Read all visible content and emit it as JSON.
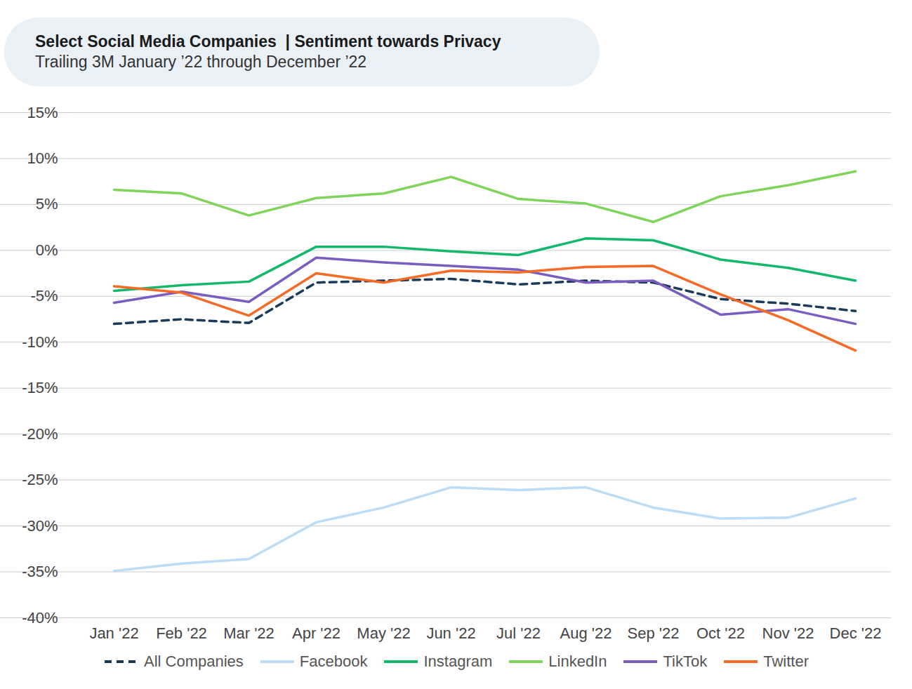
{
  "chart_data": {
    "type": "line",
    "title": "Select Social Media Companies  | Sentiment towards Privacy",
    "subtitle": "Trailing 3M January ’22 through December ’22",
    "categories": [
      "Jan '22",
      "Feb '22",
      "Mar '22",
      "Apr '22",
      "May '22",
      "Jun '22",
      "Jul '22",
      "Aug '22",
      "Sep '22",
      "Oct '22",
      "Nov '22",
      "Dec '22"
    ],
    "series": [
      {
        "name": "All Companies",
        "color": "#1b3a57",
        "line_style": "dashed",
        "values": [
          -8.0,
          -7.5,
          -7.9,
          -3.5,
          -3.3,
          -3.1,
          -3.7,
          -3.3,
          -3.5,
          -5.3,
          -5.8,
          -6.6
        ]
      },
      {
        "name": "Facebook",
        "color": "#bddcf5",
        "values": [
          -34.9,
          -34.1,
          -33.6,
          -29.6,
          -28.0,
          -25.8,
          -26.1,
          -25.8,
          -28.0,
          -29.2,
          -29.1,
          -27.0
        ]
      },
      {
        "name": "Instagram",
        "color": "#14b86a",
        "values": [
          -4.4,
          -3.8,
          -3.4,
          0.4,
          0.4,
          -0.1,
          -0.5,
          1.3,
          1.1,
          -1.0,
          -1.9,
          -3.3
        ]
      },
      {
        "name": "LinkedIn",
        "color": "#80d35b",
        "values": [
          6.6,
          6.2,
          3.8,
          5.7,
          6.2,
          8.0,
          5.6,
          5.1,
          3.1,
          5.9,
          7.1,
          8.6
        ]
      },
      {
        "name": "TikTok",
        "color": "#7b5cc0",
        "values": [
          -5.7,
          -4.5,
          -5.6,
          -0.8,
          -1.3,
          -1.7,
          -2.1,
          -3.5,
          -3.3,
          -7.0,
          -6.4,
          -8.0
        ]
      },
      {
        "name": "Twitter",
        "color": "#f56a24",
        "values": [
          -3.9,
          -4.6,
          -7.1,
          -2.5,
          -3.5,
          -2.2,
          -2.4,
          -1.8,
          -1.7,
          -4.8,
          -7.6,
          -10.9
        ]
      }
    ],
    "ylim": [
      -40,
      15
    ],
    "yticks": [
      {
        "value": -40,
        "label": "-40%"
      },
      {
        "value": -35,
        "label": "-35%"
      },
      {
        "value": -30,
        "label": "-30%"
      },
      {
        "value": -25,
        "label": "-25%"
      },
      {
        "value": -20,
        "label": "-20%"
      },
      {
        "value": -15,
        "label": "-15%"
      },
      {
        "value": -10,
        "label": "-10%"
      },
      {
        "value": -5,
        "label": "-5%"
      },
      {
        "value": 0,
        "label": "0%"
      },
      {
        "value": 5,
        "label": "5%"
      },
      {
        "value": 10,
        "label": "10%"
      },
      {
        "value": 15,
        "label": "15%"
      }
    ],
    "grid": true,
    "legend": "bottom"
  }
}
